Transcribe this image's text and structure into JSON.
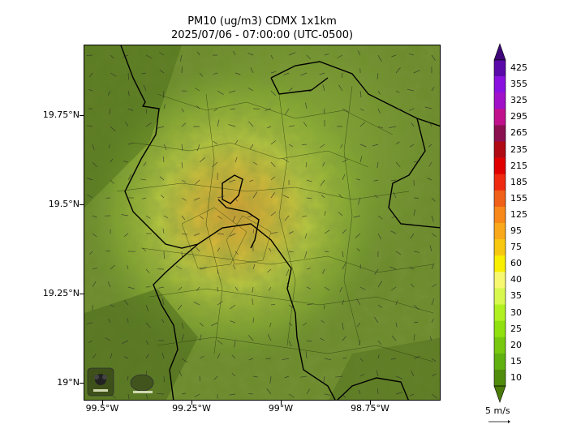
{
  "title": {
    "line1": "PM10 (ug/m3) CDMX 1x1km",
    "line2": "2025/07/06 - 07:00:00 (UTC-0500)"
  },
  "axes": {
    "x_ticks": [
      "99.5°W",
      "99.25°W",
      "99°W",
      "98.75°W"
    ],
    "y_ticks": [
      "19.75°N",
      "19.5°N",
      "19.25°N",
      "19°N"
    ]
  },
  "colorbar": {
    "labels": [
      "425",
      "355",
      "325",
      "295",
      "265",
      "235",
      "215",
      "185",
      "155",
      "125",
      "95",
      "75",
      "60",
      "40",
      "35",
      "30",
      "25",
      "20",
      "15",
      "10"
    ],
    "colors": [
      "#5a0aa8",
      "#8a10e0",
      "#a010c8",
      "#c0108c",
      "#8a1050",
      "#b00a14",
      "#e00000",
      "#f02a10",
      "#f06018",
      "#f8881a",
      "#f8a81a",
      "#f8c810",
      "#f8f000",
      "#f8f870",
      "#d8f850",
      "#b0f020",
      "#90e010",
      "#78c810",
      "#60b010",
      "#508c0c"
    ],
    "wind_scale_label": "5 m/s"
  },
  "logos": [
    "SEDEMA",
    "SIMAT"
  ]
}
